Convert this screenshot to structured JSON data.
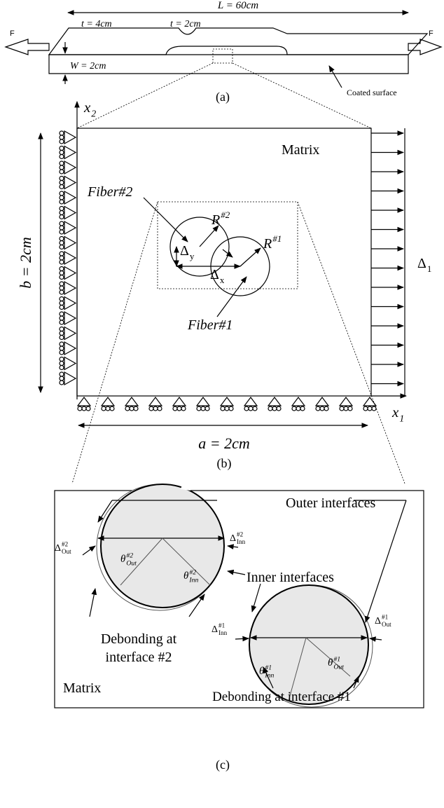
{
  "panel_a": {
    "length": "L = 60cm",
    "force_left": "F",
    "force_right": "F",
    "thickness_grip": "t = 4cm",
    "thickness_gauge": "t = 2cm",
    "width": "W = 2cm",
    "coated_surface": "Coated surface",
    "caption": "(a)"
  },
  "panel_b": {
    "axis_x2": {
      "base": "x",
      "sub": "2"
    },
    "matrix": "Matrix",
    "fiber_2": "Fiber#2",
    "radius_2": {
      "base": "R",
      "sup": "#2"
    },
    "delta_y": {
      "base": "Δ",
      "sub": "y"
    },
    "radius_1": {
      "base": "R",
      "sup": "#1"
    },
    "delta_x": {
      "base": "Δ",
      "sub": "x"
    },
    "fiber_1": "Fiber#1",
    "height": "b = 2cm",
    "displacement": {
      "base": "Δ",
      "sub": "1"
    },
    "axis_x1": {
      "base": "x",
      "sub": "1"
    },
    "width": "a = 2cm",
    "caption": "(b)"
  },
  "panel_c": {
    "outer_interfaces": "Outer interfaces",
    "delta_out_2": {
      "base": "Δ",
      "sup": "#2",
      "sub": "Out"
    },
    "delta_inn_2": {
      "base": "Δ",
      "sup": "#2",
      "sub": "Inn"
    },
    "theta_out_2": {
      "base": "θ",
      "sup": "#2",
      "sub": "Out"
    },
    "theta_inn_2": {
      "base": "θ",
      "sup": "#2",
      "sub": "Inn"
    },
    "inner_interfaces": "Inner interfaces",
    "delta_inn_1": {
      "base": "Δ",
      "sup": "#1",
      "sub": "Inn"
    },
    "delta_out_1": {
      "base": "Δ",
      "sup": "#1",
      "sub": "Out"
    },
    "theta_inn_1": {
      "base": "θ",
      "sup": "#1",
      "sub": "Inn"
    },
    "theta_out_1": {
      "base": "θ",
      "sup": "#1",
      "sub": "Out"
    },
    "debonding_2": [
      "Debonding at",
      "interface #2"
    ],
    "matrix": "Matrix",
    "debonding_1": "Debonding at interface #1",
    "caption": "(c)"
  }
}
